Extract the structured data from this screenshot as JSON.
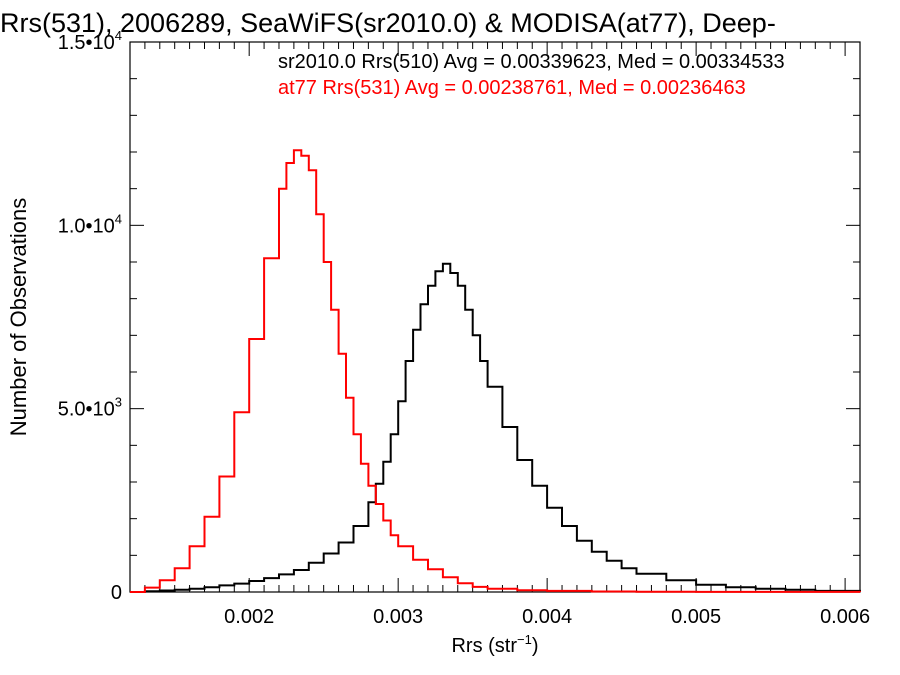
{
  "chart_data": {
    "type": "line",
    "title": "Rrs(531), 2006289, SeaWiFS(sr2010.0) & MODISA(at77), Deep-",
    "xlabel": "Rrs (str",
    "xlabel_sup": "−1",
    "xlabel_close": ")",
    "ylabel": "Number of Observations",
    "xlim": [
      0.0012,
      0.0061
    ],
    "ylim": [
      0,
      15000
    ],
    "xticks": [
      {
        "value": 0.002,
        "label": "0.002"
      },
      {
        "value": 0.003,
        "label": "0.003"
      },
      {
        "value": 0.004,
        "label": "0.004"
      },
      {
        "value": 0.005,
        "label": "0.005"
      },
      {
        "value": 0.006,
        "label": "0.006"
      }
    ],
    "yticks": [
      {
        "value": 0,
        "label": "0",
        "sup": ""
      },
      {
        "value": 5000,
        "label": "5.0•10",
        "sup": "3"
      },
      {
        "value": 10000,
        "label": "1.0•10",
        "sup": "4"
      },
      {
        "value": 15000,
        "label": "1.5•10",
        "sup": "4"
      }
    ],
    "grid": false,
    "legend_position": "top-right",
    "series": [
      {
        "name": "sr2010.0 Rrs(510) Avg = 0.00339623, Med = 0.00334533",
        "color": "#000000",
        "x": [
          0.0012,
          0.0013,
          0.0014,
          0.0015,
          0.0016,
          0.0017,
          0.0018,
          0.0019,
          0.002,
          0.0021,
          0.0022,
          0.0023,
          0.0024,
          0.0025,
          0.0026,
          0.0027,
          0.0028,
          0.00285,
          0.0029,
          0.00295,
          0.003,
          0.00305,
          0.0031,
          0.00315,
          0.0032,
          0.00325,
          0.0033,
          0.00335,
          0.0034,
          0.00345,
          0.0035,
          0.00355,
          0.0036,
          0.0037,
          0.0038,
          0.0039,
          0.004,
          0.0041,
          0.0042,
          0.0043,
          0.0044,
          0.0045,
          0.0046,
          0.0048,
          0.005,
          0.0052,
          0.0054,
          0.0056,
          0.0058,
          0.0061
        ],
        "y": [
          0,
          20,
          40,
          60,
          90,
          130,
          180,
          230,
          300,
          380,
          480,
          600,
          800,
          1050,
          1350,
          1800,
          2450,
          2950,
          3550,
          4300,
          5200,
          6300,
          7150,
          7850,
          8350,
          8750,
          8950,
          8700,
          8350,
          7700,
          7000,
          6300,
          5600,
          4500,
          3600,
          2900,
          2300,
          1800,
          1400,
          1100,
          850,
          650,
          500,
          320,
          200,
          130,
          90,
          60,
          30,
          10
        ]
      },
      {
        "name": "at77 Rrs(531) Avg = 0.00238761, Med = 0.00236463",
        "color": "#ff0000",
        "x": [
          0.0012,
          0.0013,
          0.0014,
          0.0015,
          0.0016,
          0.0017,
          0.0018,
          0.0019,
          0.002,
          0.0021,
          0.0022,
          0.00225,
          0.0023,
          0.00235,
          0.0024,
          0.00245,
          0.0025,
          0.00255,
          0.0026,
          0.00265,
          0.0027,
          0.00275,
          0.0028,
          0.00285,
          0.0029,
          0.00295,
          0.003,
          0.0031,
          0.0032,
          0.0033,
          0.0034,
          0.0035,
          0.0036,
          0.0038,
          0.004,
          0.0043,
          0.0046,
          0.005,
          0.0055,
          0.0061
        ],
        "y": [
          0,
          120,
          320,
          650,
          1250,
          2050,
          3150,
          4900,
          6900,
          9100,
          11000,
          11700,
          12050,
          11900,
          11500,
          10300,
          9000,
          7700,
          6500,
          5300,
          4300,
          3500,
          2900,
          2400,
          1950,
          1550,
          1250,
          880,
          620,
          400,
          240,
          140,
          90,
          50,
          30,
          15,
          8,
          4,
          2,
          0
        ]
      }
    ]
  }
}
